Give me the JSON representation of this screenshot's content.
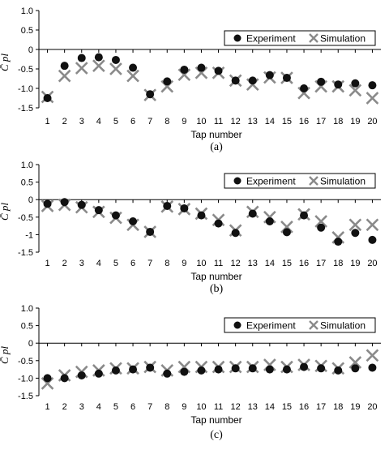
{
  "chart_data": [
    {
      "type": "scatter",
      "caption": "(a)",
      "xlabel": "Tap number",
      "ylabel": "C̄ pl",
      "ylim": [
        -1.5,
        1.0
      ],
      "yticks": [
        1.0,
        0.5,
        0,
        -0.5,
        -1,
        -1.5
      ],
      "ytick_labels": [
        "1.0",
        "0.5",
        "0",
        "-0.5",
        "-1.0",
        "-1.5"
      ],
      "x": [
        1,
        2,
        3,
        4,
        5,
        6,
        7,
        8,
        9,
        10,
        11,
        12,
        13,
        14,
        15,
        16,
        17,
        18,
        19,
        20
      ],
      "legend_position": "top-right",
      "series": [
        {
          "name": "Experiment",
          "marker": "circle",
          "color": "#111111",
          "values": [
            -1.25,
            -0.42,
            -0.22,
            -0.2,
            -0.27,
            -0.47,
            -1.15,
            -0.82,
            -0.52,
            -0.47,
            -0.55,
            -0.8,
            -0.8,
            -0.66,
            -0.73,
            -1.0,
            -0.83,
            -0.9,
            -0.87,
            -0.92
          ]
        },
        {
          "name": "Simulation",
          "marker": "x",
          "color": "#8a8a8a",
          "values": [
            -1.22,
            -0.68,
            -0.48,
            -0.42,
            -0.5,
            -0.68,
            -1.17,
            -0.95,
            -0.65,
            -0.6,
            -0.6,
            -0.8,
            -0.9,
            -0.72,
            -0.73,
            -1.12,
            -0.95,
            -0.95,
            -1.05,
            -1.25
          ]
        }
      ]
    },
    {
      "type": "scatter",
      "caption": "(b)",
      "xlabel": "Tap number",
      "ylabel": "C̄ pl",
      "ylim": [
        -1.5,
        1.0
      ],
      "yticks": [
        1.0,
        0.5,
        0,
        -0.5,
        -1,
        -1.5
      ],
      "ytick_labels": [
        "1.0",
        "0.5",
        "0",
        "-0.5",
        "-1",
        "-1.5"
      ],
      "x": [
        1,
        2,
        3,
        4,
        5,
        6,
        7,
        8,
        9,
        10,
        11,
        12,
        13,
        14,
        15,
        16,
        17,
        18,
        19,
        20
      ],
      "legend_position": "top-right",
      "series": [
        {
          "name": "Experiment",
          "marker": "circle",
          "color": "#111111",
          "values": [
            -0.12,
            -0.07,
            -0.15,
            -0.3,
            -0.45,
            -0.62,
            -0.92,
            -0.18,
            -0.25,
            -0.45,
            -0.68,
            -0.95,
            -0.4,
            -0.62,
            -0.93,
            -0.45,
            -0.8,
            -1.2,
            -0.95,
            -1.15
          ]
        },
        {
          "name": "Simulation",
          "marker": "x",
          "color": "#8a8a8a",
          "values": [
            -0.18,
            -0.15,
            -0.22,
            -0.35,
            -0.52,
            -0.72,
            -0.92,
            -0.2,
            -0.27,
            -0.4,
            -0.58,
            -0.88,
            -0.35,
            -0.5,
            -0.78,
            -0.42,
            -0.62,
            -1.08,
            -0.72,
            -0.72
          ]
        }
      ]
    },
    {
      "type": "scatter",
      "caption": "(c)",
      "xlabel": "Tap number",
      "ylabel": "C̄ pl",
      "ylim": [
        -1.5,
        1.0
      ],
      "yticks": [
        1.0,
        0.5,
        0,
        -0.5,
        -1,
        -1.5
      ],
      "ytick_labels": [
        "1.0",
        "0.5",
        "0",
        "-0.5",
        "-1.0",
        "-1.5"
      ],
      "x": [
        1,
        2,
        3,
        4,
        5,
        6,
        7,
        8,
        9,
        10,
        11,
        12,
        13,
        14,
        15,
        16,
        17,
        18,
        19,
        20
      ],
      "legend_position": "top-right",
      "series": [
        {
          "name": "Experiment",
          "marker": "circle",
          "color": "#111111",
          "values": [
            -1.0,
            -1.0,
            -0.92,
            -0.87,
            -0.78,
            -0.75,
            -0.7,
            -0.87,
            -0.82,
            -0.78,
            -0.75,
            -0.72,
            -0.72,
            -0.75,
            -0.75,
            -0.68,
            -0.72,
            -0.78,
            -0.72,
            -0.7
          ]
        },
        {
          "name": "Simulation",
          "marker": "x",
          "color": "#8a8a8a",
          "values": [
            -1.15,
            -0.92,
            -0.82,
            -0.78,
            -0.72,
            -0.72,
            -0.68,
            -0.78,
            -0.68,
            -0.68,
            -0.68,
            -0.68,
            -0.68,
            -0.62,
            -0.68,
            -0.62,
            -0.65,
            -0.72,
            -0.55,
            -0.35
          ]
        }
      ]
    }
  ]
}
